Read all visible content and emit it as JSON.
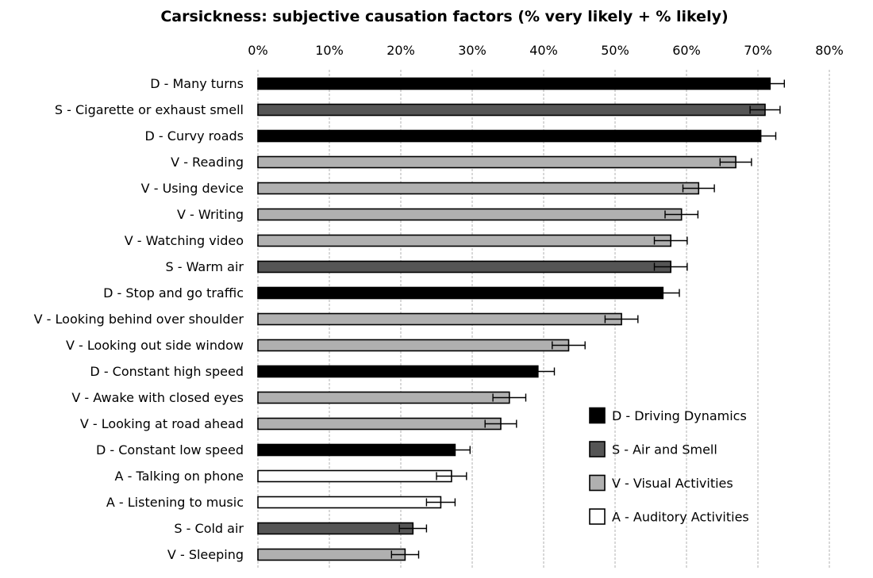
{
  "chart_data": {
    "type": "bar",
    "orientation": "horizontal",
    "title": "Carsickness: subjective causation factors (% very likely + % likely)",
    "xlabel": "",
    "ylabel": "",
    "xlim": [
      0,
      80
    ],
    "x_ticks": [
      0,
      10,
      20,
      30,
      40,
      50,
      60,
      70,
      80
    ],
    "x_tick_labels": [
      "0%",
      "10%",
      "20%",
      "30%",
      "40%",
      "50%",
      "60%",
      "70%",
      "80%"
    ],
    "grid": "vertical dashed",
    "legend_placement": "bottom-right",
    "groups": [
      {
        "key": "D",
        "name": "D - Driving Dynamics",
        "color": "#000000"
      },
      {
        "key": "S",
        "name": "S - Air and Smell",
        "color": "#555555"
      },
      {
        "key": "V",
        "name": "V - Visual Activities",
        "color": "#b0b0b0"
      },
      {
        "key": "A",
        "name": "A - Auditory Activities",
        "color": "#ffffff"
      }
    ],
    "categories": [
      "D - Many turns",
      "S - Cigarette or exhaust smell",
      "D - Curvy roads",
      "V - Reading",
      "V - Using device",
      "V - Writing",
      "V - Watching video",
      "S - Warm air",
      "D - Stop and go traffic",
      "V - Looking behind over shoulder",
      "V - Looking out side window",
      "D - Constant high speed",
      "V - Awake with closed eyes",
      "V - Looking at road ahead",
      "D - Constant low speed",
      "A - Talking on phone",
      "A - Listening to music",
      "S - Cold air",
      "V - Sleeping"
    ],
    "group_of_category": [
      "D",
      "S",
      "D",
      "V",
      "V",
      "V",
      "V",
      "S",
      "D",
      "V",
      "V",
      "D",
      "V",
      "V",
      "D",
      "A",
      "A",
      "S",
      "V"
    ],
    "values": [
      71.7,
      71.0,
      70.4,
      66.9,
      61.7,
      59.3,
      57.8,
      57.8,
      56.7,
      50.9,
      43.5,
      39.2,
      35.2,
      34.0,
      27.6,
      27.1,
      25.6,
      21.7,
      20.6
    ],
    "error": [
      2.0,
      2.1,
      2.1,
      2.2,
      2.2,
      2.3,
      2.3,
      2.3,
      2.3,
      2.3,
      2.3,
      2.3,
      2.3,
      2.2,
      2.1,
      2.1,
      2.0,
      1.9,
      1.9
    ]
  }
}
